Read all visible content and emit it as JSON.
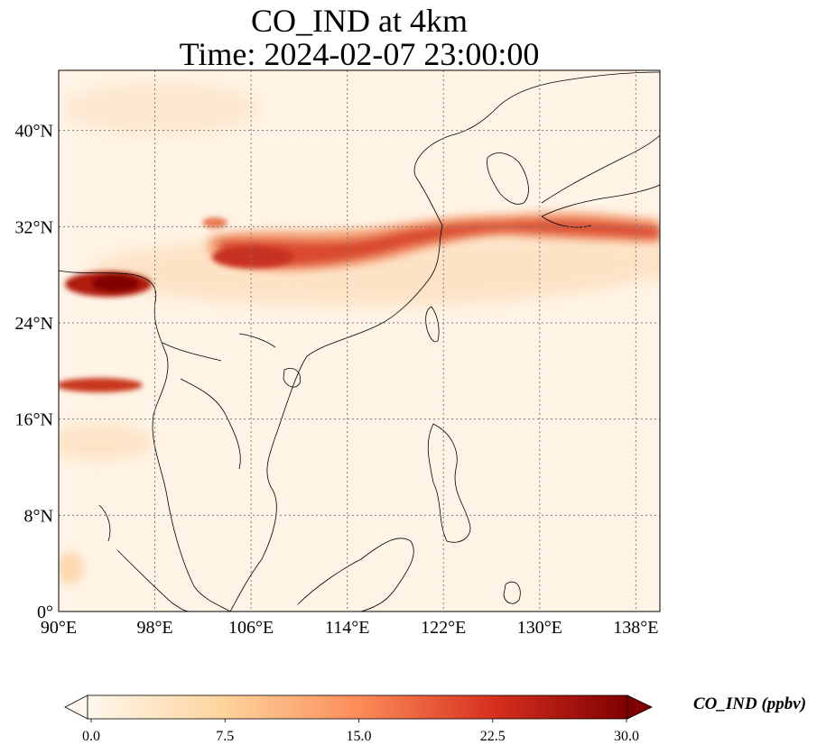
{
  "title": {
    "line1": "CO_IND at 4km",
    "line2": "Time: 2024-02-07 23:00:00"
  },
  "map": {
    "lon_range": [
      90,
      140
    ],
    "lat_range": [
      0,
      45
    ],
    "lon_ticks": [
      {
        "value": 90,
        "label": "90°E"
      },
      {
        "value": 98,
        "label": "98°E"
      },
      {
        "value": 106,
        "label": "106°E"
      },
      {
        "value": 114,
        "label": "114°E"
      },
      {
        "value": 122,
        "label": "122°E"
      },
      {
        "value": 130,
        "label": "130°E"
      },
      {
        "value": 138,
        "label": "138°E"
      }
    ],
    "lat_ticks": [
      {
        "value": 0,
        "label": "0°"
      },
      {
        "value": 8,
        "label": "8°N"
      },
      {
        "value": 16,
        "label": "16°N"
      },
      {
        "value": 24,
        "label": "24°N"
      },
      {
        "value": 32,
        "label": "32°N"
      },
      {
        "value": 40,
        "label": "40°N"
      }
    ],
    "gridlines": true,
    "colormap": "OrRd",
    "colors": {
      "low": "#fff7ec",
      "mid_low": "#fdd49e",
      "mid": "#fc8d59",
      "mid_high": "#d7301f",
      "high": "#7f0000",
      "grid": "#7a7a7a",
      "coast": "#000000"
    }
  },
  "colorbar": {
    "label": "CO_IND (ppbv)",
    "min": 0.0,
    "max": 30.0,
    "extend": "both",
    "ticks": [
      {
        "value": 0.0,
        "label": "0.0"
      },
      {
        "value": 7.5,
        "label": "7.5"
      },
      {
        "value": 15.0,
        "label": "15.0"
      },
      {
        "value": 22.5,
        "label": "22.5"
      },
      {
        "value": 30.0,
        "label": "30.0"
      }
    ]
  }
}
